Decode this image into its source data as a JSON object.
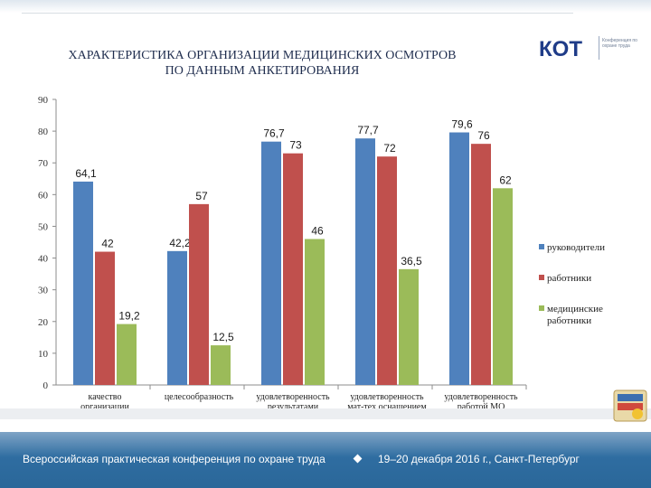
{
  "title_line1": "ХАРАКТЕРИСТИКА ОРГАНИЗАЦИИ МЕДИЦИНСКИХ ОСМОТРОВ",
  "title_line2": "ПО ДАННЫМ АНКЕТИРОВАНИЯ",
  "logo": {
    "text": "КОТ",
    "subtitle": "Конференция по охране труда"
  },
  "footer": {
    "left": "Всероссийская практическая конференция по охране труда",
    "right": "19–20 декабря 2016 г., Санкт-Петербург"
  },
  "chart_data": {
    "type": "bar",
    "categories": [
      [
        "качество",
        "организации"
      ],
      [
        "целесообразность"
      ],
      [
        "удовлетворенность",
        "результатами"
      ],
      [
        "удовлетворенность",
        "мат-тех оснащением"
      ],
      [
        "удовлетворенность",
        "работой МО"
      ]
    ],
    "series": [
      {
        "name": "руководители",
        "color": "#4f81bd",
        "values": [
          64.1,
          42.2,
          76.7,
          77.7,
          79.6
        ],
        "labels": [
          "64,1",
          "42,2",
          "76,7",
          "77,7",
          "79,6"
        ]
      },
      {
        "name": "работники",
        "color": "#c0504d",
        "values": [
          42,
          57,
          73,
          72,
          76
        ],
        "labels": [
          "42",
          "57",
          "73",
          "72",
          "76"
        ]
      },
      {
        "name": "медицинские работники",
        "color": "#9bbb59",
        "values": [
          19.2,
          12.5,
          46,
          36.5,
          62
        ],
        "labels": [
          "19,2",
          "12,5",
          "46",
          "36,5",
          "62"
        ]
      }
    ],
    "legend_lines": [
      [
        "руководители"
      ],
      [
        "работники"
      ],
      [
        "медицинские",
        "работники"
      ]
    ],
    "yticks": [
      0,
      10,
      20,
      30,
      40,
      50,
      60,
      70,
      80,
      90
    ],
    "ylim": [
      0,
      90
    ],
    "grid": false,
    "legend_position": "right"
  }
}
